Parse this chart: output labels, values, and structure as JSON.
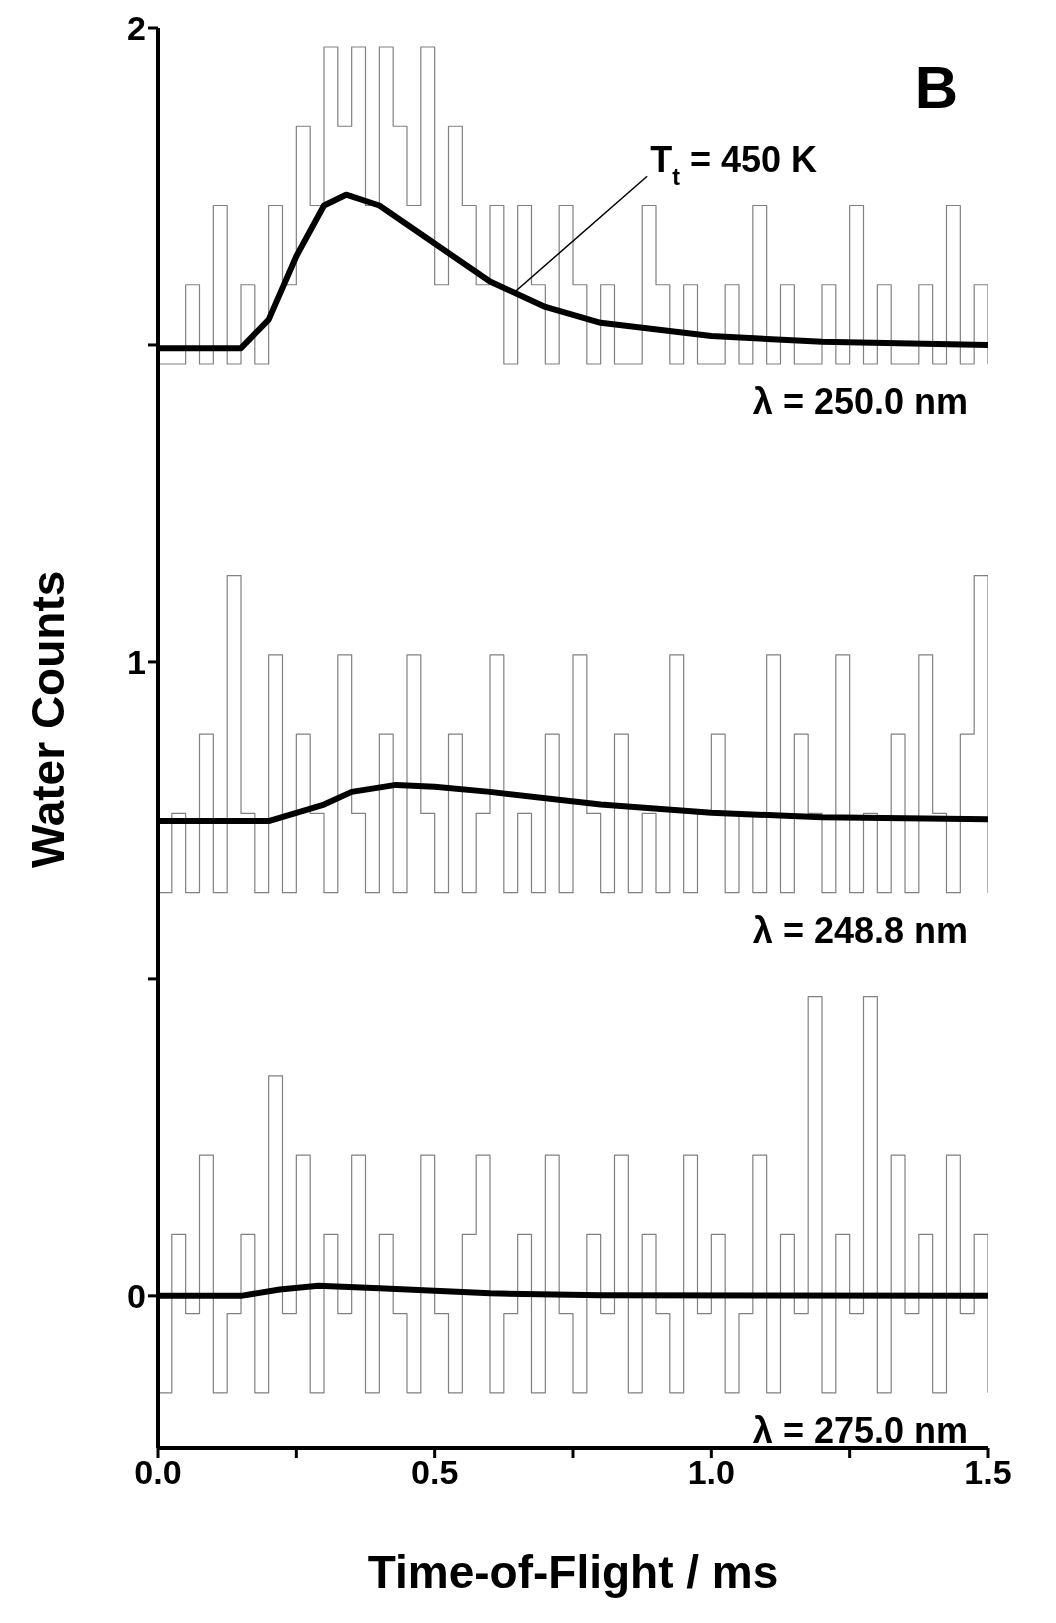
{
  "chart_data": {
    "type": "step",
    "xlabel": "Time-of-Flight / ms",
    "ylabel": "Water Counts",
    "annotations": [
      "B",
      {
        "text": "T$_{t}$ = 450 K",
        "x": 0.64,
        "y": 1.58
      }
    ],
    "x": [
      0,
      0.025,
      0.05,
      0.075,
      0.1,
      0.125,
      0.15,
      0.175,
      0.2,
      0.225,
      0.25,
      0.275,
      0.3,
      0.325,
      0.35,
      0.375,
      0.4,
      0.425,
      0.45,
      0.475,
      0.5,
      0.525,
      0.55,
      0.575,
      0.6,
      0.625,
      0.65,
      0.675,
      0.7,
      0.725,
      0.75,
      0.775,
      0.8,
      0.825,
      0.85,
      0.875,
      0.9,
      0.925,
      0.95,
      0.975,
      1,
      1.025,
      1.05,
      1.075,
      1.1,
      1.125,
      1.15,
      1.175,
      1.2,
      1.225,
      1.25,
      1.275,
      1.3,
      1.325,
      1.35,
      1.375,
      1.4,
      1.425,
      1.45,
      1.475,
      1.5
    ],
    "series": [
      {
        "name": "λ = 250.0 nm",
        "color": "#808080",
        "values": [
          1.47,
          1.47,
          1.595,
          1.47,
          1.72,
          1.47,
          1.595,
          1.47,
          1.72,
          1.595,
          1.845,
          1.72,
          1.97,
          1.845,
          1.97,
          1.72,
          1.97,
          1.845,
          1.72,
          1.97,
          1.595,
          1.845,
          1.72,
          1.595,
          1.72,
          1.47,
          1.72,
          1.595,
          1.47,
          1.72,
          1.595,
          1.47,
          1.595,
          1.47,
          1.47,
          1.72,
          1.595,
          1.47,
          1.595,
          1.47,
          1.47,
          1.595,
          1.47,
          1.72,
          1.47,
          1.595,
          1.47,
          1.47,
          1.595,
          1.47,
          1.72,
          1.47,
          1.595,
          1.47,
          1.47,
          1.595,
          1.47,
          1.72,
          1.47,
          1.595,
          1.47
        ]
      },
      {
        "name": "λ = 248.8 nm",
        "color": "#808080",
        "values": [
          0.636,
          0.761,
          0.636,
          0.886,
          0.636,
          1.136,
          0.761,
          0.636,
          1.011,
          0.636,
          0.886,
          0.761,
          0.636,
          1.011,
          0.761,
          0.636,
          0.886,
          0.636,
          1.011,
          0.761,
          0.636,
          0.886,
          0.636,
          0.761,
          1.011,
          0.636,
          0.761,
          0.636,
          0.886,
          0.636,
          1.011,
          0.761,
          0.636,
          0.886,
          0.636,
          0.761,
          0.636,
          1.011,
          0.636,
          0.761,
          0.886,
          0.636,
          0.761,
          0.636,
          1.011,
          0.636,
          0.886,
          0.761,
          0.636,
          1.011,
          0.636,
          0.761,
          0.636,
          0.886,
          0.636,
          1.011,
          0.761,
          0.636,
          0.886,
          1.136,
          0.636
        ]
      },
      {
        "name": "λ = 275.0 nm",
        "color": "#808080",
        "values": [
          -0.153,
          0.097,
          -0.028,
          0.222,
          -0.153,
          -0.028,
          0.097,
          -0.153,
          0.347,
          -0.028,
          0.222,
          -0.153,
          0.097,
          -0.028,
          0.222,
          -0.153,
          0.097,
          -0.028,
          -0.153,
          0.222,
          -0.028,
          -0.153,
          0.097,
          0.222,
          -0.153,
          -0.028,
          0.097,
          -0.153,
          0.222,
          -0.028,
          -0.153,
          0.097,
          -0.028,
          0.222,
          -0.153,
          0.097,
          -0.028,
          -0.153,
          0.222,
          -0.028,
          0.097,
          -0.153,
          -0.028,
          0.222,
          -0.153,
          0.097,
          -0.028,
          0.472,
          -0.153,
          0.097,
          -0.028,
          0.472,
          -0.153,
          0.222,
          -0.028,
          0.097,
          -0.153,
          0.222,
          -0.028,
          0.097,
          -0.153
        ]
      },
      {
        "type": "line",
        "color": "#000000",
        "x": [
          0,
          0.15,
          0.2,
          0.25,
          0.3,
          0.34,
          0.4,
          0.5,
          0.6,
          0.7,
          0.8,
          1,
          1.2,
          1.5
        ],
        "values": [
          1.495,
          1.495,
          1.54,
          1.64,
          1.72,
          1.737,
          1.72,
          1.66,
          1.6,
          1.56,
          1.535,
          1.514,
          1.505,
          1.5
        ]
      },
      {
        "type": "line",
        "color": "#000000",
        "x": [
          0,
          0.2,
          0.3,
          0.35,
          0.43,
          0.5,
          0.6,
          0.8,
          1,
          1.2,
          1.5
        ],
        "values": [
          0.749,
          0.749,
          0.775,
          0.795,
          0.806,
          0.803,
          0.795,
          0.775,
          0.762,
          0.755,
          0.752
        ]
      },
      {
        "type": "line",
        "color": "#000000",
        "x": [
          0,
          0.15,
          0.22,
          0.29,
          0.4,
          0.6,
          0.8,
          1.5
        ],
        "values": [
          0,
          0,
          0.01,
          0.016,
          0.012,
          0.004,
          0.001,
          0
        ]
      }
    ],
    "xlim": [
      0,
      1.5
    ],
    "xticks": [
      {
        "value": 0,
        "label": "0.0"
      },
      {
        "value": 0.25,
        "label": null
      },
      0.5,
      {
        "value": 0.75,
        "label": null
      },
      {
        "value": 1,
        "label": "1.0"
      },
      {
        "value": 1.25,
        "label": null
      },
      1.5
    ],
    "ylim": [
      -0.24,
      2
    ],
    "yticks": [
      0,
      {
        "value": 0.5,
        "label": null
      },
      1,
      {
        "value": 1.5,
        "label": null
      },
      2
    ],
    "marker": "none"
  }
}
